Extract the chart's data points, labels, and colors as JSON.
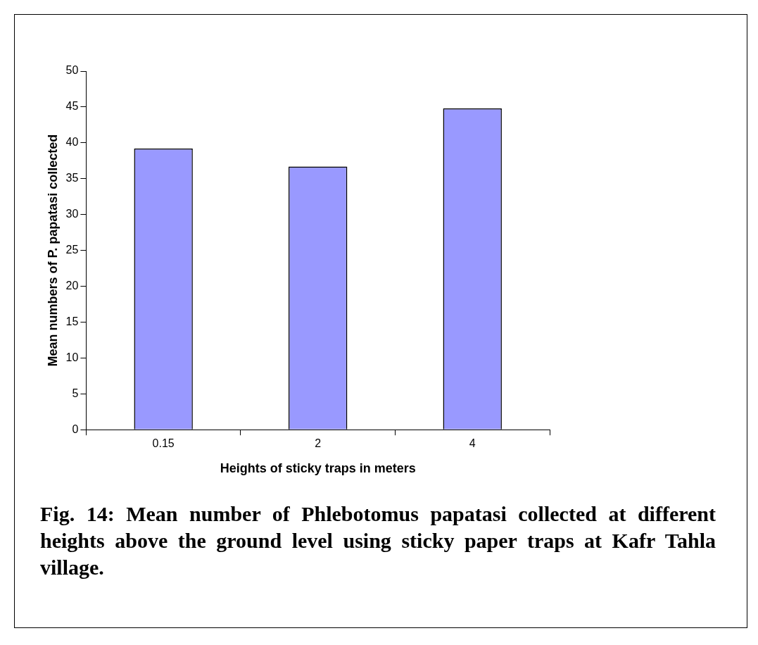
{
  "chart_data": {
    "type": "bar",
    "categories": [
      "0.15",
      "2",
      "4"
    ],
    "values": [
      39.2,
      36.7,
      44.8
    ],
    "color": "#9999ff",
    "ylim": [
      0,
      50
    ],
    "yticks": [
      0,
      5,
      10,
      15,
      20,
      25,
      30,
      35,
      40,
      45,
      50
    ],
    "xlabel": "Heights of sticky traps in meters",
    "ylabel": "Mean numbers of P. papatasi collected",
    "grid": false,
    "legend": false,
    "annotations": [
      "Fig. 14: Mean number of Phlebotomus papatasi collected at different heights above the ground level using sticky paper traps at Kafr Tahla village."
    ]
  }
}
